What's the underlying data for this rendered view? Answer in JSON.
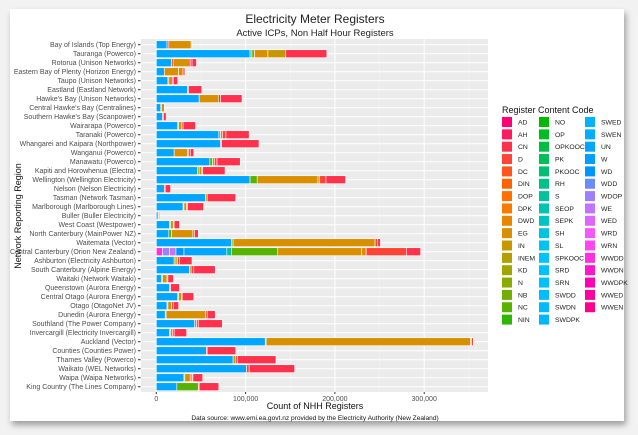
{
  "chart_data": {
    "type": "bar",
    "orientation": "horizontal",
    "stacked": true,
    "title": "Electricity Meter Registers",
    "subtitle": "Active ICPs, Non Half Hour Registers",
    "xlabel": "Count of NHH Registers",
    "ylabel": "Network Reporting Region",
    "caption": "Data source: www.emi.ea.govt.nz provided by the Electricity Authority (New Zealand)",
    "xlim": [
      0,
      370000
    ],
    "xticks": [
      0,
      100000,
      200000,
      300000
    ],
    "xtick_labels": [
      "0",
      "100,000",
      "200,000",
      "300,000"
    ],
    "grid": true,
    "legend_title": "Register Content Code",
    "legend_position": "right",
    "legend": [
      "AD",
      "AH",
      "CN",
      "D",
      "DC",
      "DIN",
      "DOP",
      "DPK",
      "DWD",
      "EG",
      "IN",
      "INEM",
      "KD",
      "N",
      "NB",
      "NC",
      "NIN",
      "NO",
      "OP",
      "OPKOOC",
      "PK",
      "PKOOC",
      "RH",
      "S",
      "SEOP",
      "SEPK",
      "SH",
      "SL",
      "SPKOOC",
      "SRD",
      "SRN",
      "SWDD",
      "SWDN",
      "SWDPK",
      "SWED",
      "SWEN",
      "UN",
      "W",
      "WD",
      "WDD",
      "WDOP",
      "WE",
      "WED",
      "WRD",
      "WRN",
      "WWDD",
      "WWDN",
      "WWDPK",
      "WWED",
      "WWEN"
    ],
    "categories": [
      {
        "label": "Bay of Islands (Top Energy)",
        "segments": [
          [
            "UN",
            12000
          ],
          [
            "D",
            2000
          ],
          [
            "EG",
            25000
          ],
          [
            "DWD",
            1000
          ]
        ]
      },
      {
        "label": "Tauranga (Powerco)",
        "segments": [
          [
            "UN",
            105000
          ],
          [
            "SL",
            2000
          ],
          [
            "N",
            3000
          ],
          [
            "EG",
            15000
          ],
          [
            "IN",
            20000
          ],
          [
            "CN",
            46000
          ]
        ]
      },
      {
        "label": "Rotorua (Unison Networks)",
        "segments": [
          [
            "UN",
            17000
          ],
          [
            "DC",
            2000
          ],
          [
            "EG",
            19000
          ],
          [
            "AD",
            2000
          ],
          [
            "CN",
            5000
          ]
        ]
      },
      {
        "label": "Eastern Bay of Plenty (Horizon Energy)",
        "segments": [
          [
            "UN",
            9000
          ],
          [
            "EG",
            16000
          ],
          [
            "DWD",
            5000
          ],
          [
            "CN",
            2000
          ]
        ]
      },
      {
        "label": "Taupo (Unison Networks)",
        "segments": [
          [
            "UN",
            13000
          ],
          [
            "DC",
            1000
          ],
          [
            "EG",
            4000
          ],
          [
            "AD",
            1000
          ],
          [
            "CN",
            5000
          ]
        ]
      },
      {
        "label": "Eastland (Eastland Network)",
        "segments": [
          [
            "UN",
            35000
          ],
          [
            "D",
            1000
          ],
          [
            "CN",
            15000
          ]
        ]
      },
      {
        "label": "Hawke's Bay (Unison Networks)",
        "segments": [
          [
            "UN",
            48000
          ],
          [
            "EG",
            22000
          ],
          [
            "AD",
            2000
          ],
          [
            "CN",
            24000
          ]
        ]
      },
      {
        "label": "Central Hawke's Bay (Centralines)",
        "segments": [
          [
            "UN",
            5000
          ],
          [
            "N",
            1000
          ],
          [
            "EG",
            3000
          ]
        ]
      },
      {
        "label": "Southern Hawke's Bay (Scanpower)",
        "segments": [
          [
            "UN",
            7000
          ],
          [
            "D",
            1000
          ],
          [
            "CN",
            3000
          ]
        ]
      },
      {
        "label": "Wairarapa (Powerco)",
        "segments": [
          [
            "UN",
            24000
          ],
          [
            "N",
            1000
          ],
          [
            "EG",
            3000
          ],
          [
            "D",
            2000
          ],
          [
            "CN",
            14000
          ]
        ]
      },
      {
        "label": "Taranaki (Powerco)",
        "segments": [
          [
            "UN",
            70000
          ],
          [
            "IN",
            2000
          ],
          [
            "DWD",
            2000
          ],
          [
            "D",
            4000
          ],
          [
            "CN",
            26000
          ]
        ]
      },
      {
        "label": "Whangarei and Kaipara (Northpower)",
        "segments": [
          [
            "UN",
            72000
          ],
          [
            "D",
            1000
          ],
          [
            "CN",
            42000
          ]
        ]
      },
      {
        "label": "Wanganui (Powerco)",
        "segments": [
          [
            "UN",
            20000
          ],
          [
            "EG",
            15000
          ],
          [
            "DWD",
            1000
          ],
          [
            "D",
            2000
          ],
          [
            "CN",
            4000
          ]
        ]
      },
      {
        "label": "Manawatu (Powerco)",
        "segments": [
          [
            "UN",
            60000
          ],
          [
            "NC",
            3000
          ],
          [
            "DWD",
            2000
          ],
          [
            "D",
            3000
          ],
          [
            "CN",
            26000
          ]
        ]
      },
      {
        "label": "Kapiti and Horowhenua (Electra)",
        "segments": [
          [
            "UN",
            46000
          ],
          [
            "N",
            2000
          ],
          [
            "EG",
            3000
          ],
          [
            "D",
            1000
          ],
          [
            "CN",
            25000
          ]
        ]
      },
      {
        "label": "Wellington (Wellington Electricity)",
        "segments": [
          [
            "UN",
            105000
          ],
          [
            "NC",
            8000
          ],
          [
            "EG",
            68000
          ],
          [
            "DWD",
            2000
          ],
          [
            "D",
            7000
          ],
          [
            "CN",
            22000
          ]
        ]
      },
      {
        "label": "Nelson (Nelson Electricity)",
        "segments": [
          [
            "UN",
            9000
          ],
          [
            "D",
            1000
          ],
          [
            "CN",
            6000
          ]
        ]
      },
      {
        "label": "Tasman (Network Tasman)",
        "segments": [
          [
            "UN",
            55000
          ],
          [
            "EG",
            2000
          ],
          [
            "CN",
            32000
          ]
        ]
      },
      {
        "label": "Marlborough (Marlborough Lines)",
        "segments": [
          [
            "UN",
            30000
          ],
          [
            "N",
            1000
          ],
          [
            "EG",
            3000
          ],
          [
            "D",
            1000
          ],
          [
            "CN",
            18000
          ]
        ]
      },
      {
        "label": "Buller (Buller Electricity)",
        "segments": [
          [
            "UN",
            2000
          ],
          [
            "D",
            1000
          ],
          [
            "CN",
            1000
          ]
        ]
      },
      {
        "label": "West Coast (Westpower)",
        "segments": [
          [
            "UN",
            15000
          ],
          [
            "N",
            1000
          ],
          [
            "EG",
            3000
          ],
          [
            "D",
            1000
          ],
          [
            "CN",
            6000
          ]
        ]
      },
      {
        "label": "North Canterbury (MainPower NZ)",
        "segments": [
          [
            "UN",
            14000
          ],
          [
            "NC",
            3000
          ],
          [
            "EG",
            24000
          ],
          [
            "D",
            2000
          ],
          [
            "CN",
            4000
          ]
        ]
      },
      {
        "label": "Waitemata (Vector)",
        "segments": [
          [
            "UN",
            84000
          ],
          [
            "N",
            2000
          ],
          [
            "EG",
            159000
          ],
          [
            "D",
            3000
          ],
          [
            "CN",
            3000
          ]
        ]
      },
      {
        "label": "Central Canterbury (Orion New Zealand)",
        "segments": [
          [
            "WWDD",
            7000
          ],
          [
            "WDOP",
            8000
          ],
          [
            "WE",
            7000
          ],
          [
            "WD",
            9000
          ],
          [
            "UN",
            48000
          ],
          [
            "S",
            5000
          ],
          [
            "NC",
            52000
          ],
          [
            "EG",
            94000
          ],
          [
            "DWD",
            5000
          ],
          [
            "D",
            45000
          ],
          [
            "CN",
            16000
          ]
        ]
      },
      {
        "label": "Ashburton (Electricity Ashburton)",
        "segments": [
          [
            "UN",
            20000
          ],
          [
            "N",
            2000
          ],
          [
            "EG",
            2000
          ],
          [
            "D",
            2000
          ],
          [
            "CN",
            14000
          ]
        ]
      },
      {
        "label": "South Canterbury (Alpine Energy)",
        "segments": [
          [
            "UN",
            37000
          ],
          [
            "DWD",
            2000
          ],
          [
            "D",
            3000
          ],
          [
            "CN",
            24000
          ]
        ]
      },
      {
        "label": "Waitaki (Network Waitaki)",
        "segments": [
          [
            "UN",
            6000
          ],
          [
            "NC",
            1000
          ],
          [
            "EG",
            5000
          ],
          [
            "DWD",
            1000
          ],
          [
            "CN",
            6000
          ],
          [
            "D",
            1000
          ]
        ]
      },
      {
        "label": "Queenstown (Aurora Energy)",
        "segments": [
          [
            "UN",
            15000
          ],
          [
            "D",
            1000
          ],
          [
            "CN",
            10000
          ]
        ]
      },
      {
        "label": "Central Otago (Aurora Energy)",
        "segments": [
          [
            "UN",
            24000
          ],
          [
            "N",
            1000
          ],
          [
            "EG",
            3000
          ],
          [
            "D",
            1000
          ],
          [
            "CN",
            13000
          ]
        ]
      },
      {
        "label": "Otago (OtagoNet JV)",
        "segments": [
          [
            "UN",
            12000
          ],
          [
            "N",
            1000
          ],
          [
            "EG",
            4000
          ],
          [
            "D",
            2000
          ],
          [
            "CN",
            6000
          ]
        ]
      },
      {
        "label": "Dunedin (Aurora Energy)",
        "segments": [
          [
            "UN",
            10000
          ],
          [
            "N",
            1000
          ],
          [
            "EG",
            44000
          ],
          [
            "D",
            2000
          ],
          [
            "CN",
            9000
          ]
        ]
      },
      {
        "label": "Southland (The Power Company)",
        "segments": [
          [
            "UN",
            43000
          ],
          [
            "EG",
            2000
          ],
          [
            "D",
            2000
          ],
          [
            "CN",
            27000
          ]
        ]
      },
      {
        "label": "Invercargill (Electricity Invercargill)",
        "segments": [
          [
            "UN",
            15000
          ],
          [
            "N",
            1000
          ],
          [
            "EG",
            2000
          ],
          [
            "D",
            2000
          ],
          [
            "CN",
            14000
          ]
        ]
      },
      {
        "label": "Auckland (Vector)",
        "segments": [
          [
            "UN",
            122000
          ],
          [
            "N",
            1000
          ],
          [
            "EG",
            229000
          ],
          [
            "DWD",
            1000
          ],
          [
            "D",
            2000
          ]
        ]
      },
      {
        "label": "Counties (Counties Power)",
        "segments": [
          [
            "UN",
            56000
          ],
          [
            "D",
            1000
          ],
          [
            "CN",
            32000
          ]
        ]
      },
      {
        "label": "Thames Valley (Powerco)",
        "segments": [
          [
            "UN",
            86000
          ],
          [
            "EG",
            3000
          ],
          [
            "D",
            2000
          ],
          [
            "CN",
            43000
          ]
        ]
      },
      {
        "label": "Waikato (WEL Networks)",
        "segments": [
          [
            "UN",
            101000
          ],
          [
            "D",
            3000
          ],
          [
            "CN",
            51000
          ]
        ]
      },
      {
        "label": "Waipa (Waipa Networks)",
        "segments": [
          [
            "UN",
            31000
          ],
          [
            "N",
            1000
          ],
          [
            "EG",
            6000
          ],
          [
            "D",
            2000
          ],
          [
            "IN",
            1000
          ],
          [
            "CN",
            11000
          ]
        ]
      },
      {
        "label": "King Country (The Lines Company)",
        "segments": [
          [
            "UN",
            23000
          ],
          [
            "NC",
            24000
          ],
          [
            "D",
            1000
          ],
          [
            "CN",
            22000
          ]
        ]
      }
    ]
  }
}
